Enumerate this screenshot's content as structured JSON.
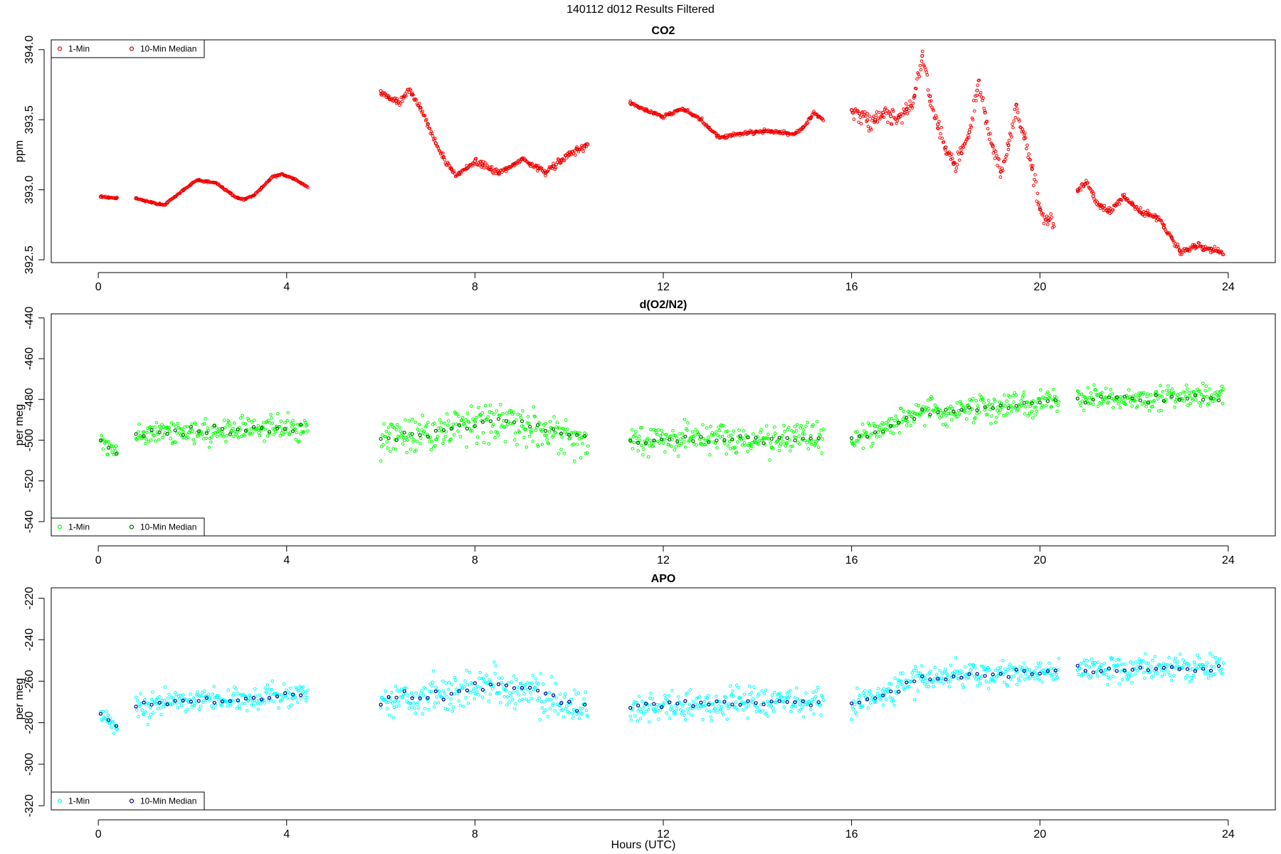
{
  "figure": {
    "title": "140112   d012   Results Filtered",
    "xlabel": "Hours (UTC)"
  },
  "chart_data": [
    {
      "type": "scatter",
      "title": "CO2",
      "ylabel": "ppm",
      "xlim": [
        -1.0,
        25.0
      ],
      "ylim": [
        392.48,
        394.07
      ],
      "xticks": [
        0,
        4,
        8,
        12,
        16,
        20,
        24
      ],
      "yticks": [
        392.5,
        393.0,
        393.5,
        394.0
      ],
      "ytick_labels": [
        "392.5",
        "393.0",
        "393.5",
        "394.0"
      ],
      "grid": false,
      "legend_position": "top-left",
      "segments": [
        {
          "x": [
            0.05,
            0.4
          ],
          "y": [
            392.95,
            392.94
          ],
          "noise": 0.01
        },
        {
          "x": [
            0.8,
            1.0,
            1.4,
            1.7,
            2.1,
            2.5,
            2.9,
            3.1,
            3.3,
            3.7,
            3.9,
            4.2,
            4.45
          ],
          "y": [
            392.94,
            392.92,
            392.89,
            392.97,
            393.07,
            393.05,
            392.95,
            392.93,
            392.96,
            393.09,
            393.11,
            393.07,
            393.02
          ],
          "noise": 0.01
        },
        {
          "x": [
            6.0,
            6.4,
            6.6,
            6.9,
            7.2,
            7.6,
            8.0,
            8.5,
            9.0,
            9.5,
            10.0,
            10.4
          ],
          "y": [
            393.7,
            393.62,
            393.72,
            393.55,
            393.3,
            393.1,
            393.2,
            393.12,
            393.22,
            393.12,
            393.25,
            393.33
          ],
          "noise": 0.04
        },
        {
          "x": [
            11.3,
            11.6,
            12.0,
            12.4,
            12.8,
            13.2,
            13.6,
            14.2,
            14.8,
            15.0,
            15.2,
            15.4
          ],
          "y": [
            393.62,
            393.57,
            393.52,
            393.58,
            393.5,
            393.37,
            393.4,
            393.42,
            393.4,
            393.45,
            393.55,
            393.5
          ],
          "noise": 0.02
        },
        {
          "x": [
            16.0,
            16.4,
            16.7,
            17.0,
            17.3,
            17.5,
            17.7,
            18.0,
            18.2,
            18.5,
            18.7,
            19.0,
            19.2,
            19.5,
            19.8,
            20.0,
            20.3
          ],
          "y": [
            393.58,
            393.47,
            393.55,
            393.5,
            393.62,
            393.95,
            393.6,
            393.3,
            393.15,
            393.4,
            393.75,
            393.3,
            393.1,
            393.6,
            393.2,
            392.85,
            392.75
          ],
          "noise": 0.1
        },
        {
          "x": [
            20.8,
            21.0,
            21.2,
            21.5,
            21.8,
            22.1,
            22.5,
            22.8,
            23.0,
            23.3,
            23.6,
            23.9
          ],
          "y": [
            393.0,
            393.05,
            392.9,
            392.85,
            392.95,
            392.85,
            392.8,
            392.65,
            392.55,
            392.6,
            392.58,
            392.55
          ],
          "noise": 0.04
        }
      ],
      "series": [
        {
          "name": "1-Min",
          "color": "#ff0000"
        },
        {
          "name": "10-Min Median",
          "color": "#cc0000"
        }
      ]
    },
    {
      "type": "scatter",
      "title": "d(O2/N2)",
      "ylabel": "per meg",
      "xlim": [
        -1.0,
        25.0
      ],
      "ylim": [
        -547,
        -438
      ],
      "xticks": [
        0,
        4,
        8,
        12,
        16,
        20,
        24
      ],
      "yticks": [
        -540,
        -520,
        -500,
        -480,
        -460,
        -440
      ],
      "ytick_labels": [
        "-540",
        "-520",
        "-500",
        "-480",
        "-460",
        "-440"
      ],
      "grid": false,
      "legend_position": "bottom-left",
      "segments": [
        {
          "x": [
            0.05,
            0.4
          ],
          "y": [
            -500,
            -506
          ],
          "noise": 6
        },
        {
          "x": [
            0.8,
            4.45
          ],
          "y": [
            -497,
            -493
          ],
          "noise": 10
        },
        {
          "x": [
            6.0,
            8.5,
            10.4
          ],
          "y": [
            -500,
            -490,
            -500
          ],
          "noise": 14
        },
        {
          "x": [
            11.3,
            15.4
          ],
          "y": [
            -500,
            -499
          ],
          "noise": 11
        },
        {
          "x": [
            16.0,
            16.9,
            17.5,
            20.4
          ],
          "y": [
            -500,
            -493,
            -486,
            -481
          ],
          "noise": 10
        },
        {
          "x": [
            20.8,
            23.9
          ],
          "y": [
            -480,
            -479
          ],
          "noise": 9
        }
      ],
      "series": [
        {
          "name": "1-Min",
          "color": "#00ff00"
        },
        {
          "name": "10-Min Median",
          "color": "#006400"
        }
      ]
    },
    {
      "type": "scatter",
      "title": "APO",
      "ylabel": "per meg",
      "xlim": [
        -1.0,
        25.0
      ],
      "ylim": [
        -322,
        -215
      ],
      "xticks": [
        0,
        4,
        8,
        12,
        16,
        20,
        24
      ],
      "yticks": [
        -320,
        -300,
        -280,
        -260,
        -240,
        -220
      ],
      "ytick_labels": [
        "-320",
        "-300",
        "-280",
        "-260",
        "-240",
        "-220"
      ],
      "grid": false,
      "legend_position": "bottom-left",
      "segments": [
        {
          "x": [
            0.05,
            0.4
          ],
          "y": [
            -275,
            -283
          ],
          "noise": 6
        },
        {
          "x": [
            0.8,
            4.45
          ],
          "y": [
            -272,
            -266
          ],
          "noise": 10
        },
        {
          "x": [
            6.0,
            8.5,
            10.4
          ],
          "y": [
            -270,
            -262,
            -273
          ],
          "noise": 14
        },
        {
          "x": [
            11.3,
            15.4
          ],
          "y": [
            -272,
            -270
          ],
          "noise": 11
        },
        {
          "x": [
            16.0,
            16.9,
            17.5,
            20.4
          ],
          "y": [
            -272,
            -265,
            -258,
            -255
          ],
          "noise": 10
        },
        {
          "x": [
            20.8,
            23.9
          ],
          "y": [
            -255,
            -253
          ],
          "noise": 9
        }
      ],
      "series": [
        {
          "name": "1-Min",
          "color": "#00ffff"
        },
        {
          "name": "10-Min Median",
          "color": "#00008b"
        }
      ]
    }
  ]
}
